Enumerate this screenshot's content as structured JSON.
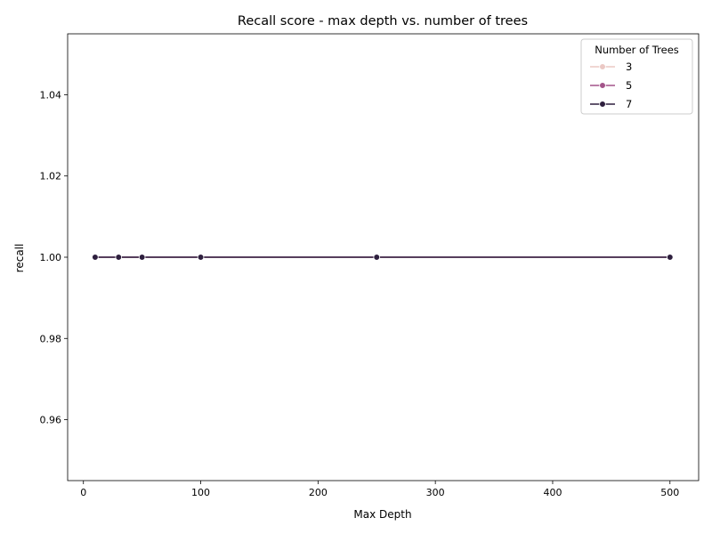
{
  "chart_data": {
    "type": "line",
    "title": "Recall score - max depth vs. number of trees",
    "xlabel": "Max Depth",
    "ylabel": "recall",
    "xlim": [
      -13.45,
      524.45
    ],
    "ylim": [
      0.945,
      1.055
    ],
    "xticks": [
      0,
      100,
      200,
      300,
      400,
      500
    ],
    "xtick_labels": [
      "0",
      "100",
      "200",
      "300",
      "400",
      "500"
    ],
    "yticks": [
      0.96,
      0.98,
      1.0,
      1.02,
      1.04
    ],
    "ytick_labels": [
      "0.96",
      "0.98",
      "1.00",
      "1.02",
      "1.04"
    ],
    "grid": false,
    "legend": {
      "title": "Number of Trees",
      "placement": "top-right"
    },
    "x": [
      10,
      30,
      50,
      100,
      250,
      500
    ],
    "series": [
      {
        "name": "3",
        "color": "#ebc8c4",
        "values": [
          1.0,
          1.0,
          1.0,
          1.0,
          1.0,
          1.0
        ]
      },
      {
        "name": "5",
        "color": "#a3548a",
        "values": [
          1.0,
          1.0,
          1.0,
          1.0,
          1.0,
          1.0
        ]
      },
      {
        "name": "7",
        "color": "#2e1f3e",
        "values": [
          1.0,
          1.0,
          1.0,
          1.0,
          1.0,
          1.0
        ]
      }
    ]
  }
}
